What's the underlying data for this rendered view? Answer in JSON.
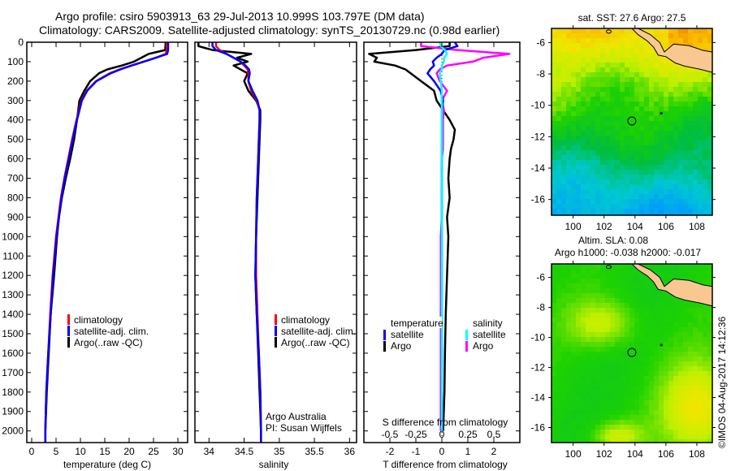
{
  "header": {
    "line1": "Argo profile: csiro 5903913_63 29-Jul-2013 10.999S 103.797E (DM data)",
    "line2": "Climatology: CARS2009. Satellite-adjusted climatology: synTS_20130729.nc (0.98d earlier)"
  },
  "colors": {
    "climatology": "#ff0000",
    "satellite": "#0000ff",
    "argo": "#000000",
    "sal_satellite": "#00ffff",
    "sal_argo": "#ff00ff",
    "land": "#f8c890"
  },
  "chart_data": [
    {
      "type": "line",
      "name": "temperature-profile",
      "xlabel": "temperature (deg C)",
      "ylabel": "",
      "xlim": [
        -1,
        32
      ],
      "ylim": [
        2060,
        0
      ],
      "xticks": [
        "0",
        "5",
        "10",
        "15",
        "20",
        "25",
        "30"
      ],
      "xtick_values": [
        0,
        5,
        10,
        15,
        20,
        25,
        30
      ],
      "yticks": [
        "0",
        "100",
        "200",
        "300",
        "400",
        "500",
        "600",
        "700",
        "800",
        "900",
        "1000",
        "1100",
        "1200",
        "1300",
        "1400",
        "1500",
        "1600",
        "1700",
        "1800",
        "1900",
        "2000"
      ],
      "ytick_values": [
        0,
        100,
        200,
        300,
        400,
        500,
        600,
        700,
        800,
        900,
        1000,
        1100,
        1200,
        1300,
        1400,
        1500,
        1600,
        1700,
        1800,
        1900,
        2000
      ],
      "legend": [
        "climatology",
        "satellite-adj. clim.",
        "Argo(..raw -QC)"
      ],
      "legend_position": "center-left",
      "depth": [
        0,
        40,
        60,
        80,
        100,
        120,
        140,
        160,
        200,
        250,
        300,
        400,
        500,
        600,
        700,
        800,
        900,
        1000,
        1200,
        1400,
        1600,
        1800,
        2000,
        2060
      ],
      "series": [
        {
          "name": "climatology",
          "values": [
            27.7,
            27.7,
            27.5,
            25.5,
            23,
            20.5,
            18,
            16,
            13.2,
            11.3,
            10.2,
            9.2,
            8.3,
            7.5,
            6.7,
            6.0,
            5.5,
            5.0,
            4.3,
            3.8,
            3.4,
            3.0,
            2.8,
            2.8
          ]
        },
        {
          "name": "satellite-adj. clim.",
          "values": [
            28,
            28,
            27.8,
            25.5,
            23,
            20.5,
            18.2,
            16.2,
            13.3,
            11.4,
            10.3,
            9.3,
            8.4,
            7.6,
            6.8,
            6.1,
            5.6,
            5.1,
            4.4,
            3.9,
            3.4,
            3.0,
            2.8,
            2.8
          ]
        },
        {
          "name": "Argo(..raw -QC)",
          "values": [
            27.5,
            27.4,
            24,
            22.5,
            21,
            18.5,
            15.5,
            13.8,
            12.0,
            10.8,
            9.8,
            9.3,
            8.7,
            7.9,
            7.0,
            6.2,
            5.6,
            5.2,
            4.6,
            3.9,
            3.5,
            3.1,
            2.8,
            2.8
          ]
        }
      ]
    },
    {
      "type": "line",
      "name": "salinity-profile",
      "xlabel": "salinity",
      "xlim": [
        33.8,
        36.1
      ],
      "ylim": [
        2060,
        0
      ],
      "xticks": [
        "34",
        "34.5",
        "35",
        "35.5",
        "36"
      ],
      "xtick_values": [
        34,
        34.5,
        35,
        35.5,
        36
      ],
      "legend": [
        "climatology",
        "satellite-adj. clim.",
        "Argo(..raw -QC)"
      ],
      "legend_position": "center-right",
      "annotation": [
        "Argo Australia",
        "PI: Susan Wijffels"
      ],
      "depth": [
        0,
        20,
        40,
        60,
        80,
        100,
        120,
        140,
        160,
        200,
        250,
        300,
        350,
        400,
        500,
        600,
        800,
        1000,
        1200,
        1400,
        1600,
        1800,
        2000,
        2060
      ],
      "series": [
        {
          "name": "climatology",
          "values": [
            34.1,
            34.1,
            34.15,
            34.25,
            34.35,
            34.45,
            34.5,
            34.55,
            34.56,
            34.56,
            34.6,
            34.68,
            34.72,
            34.72,
            34.71,
            34.7,
            34.68,
            34.67,
            34.67,
            34.69,
            34.71,
            34.73,
            34.74,
            34.74
          ]
        },
        {
          "name": "satellite-adj. clim.",
          "values": [
            34.05,
            34.05,
            34.1,
            34.25,
            34.35,
            34.45,
            34.52,
            34.57,
            34.58,
            34.56,
            34.62,
            34.69,
            34.72,
            34.72,
            34.71,
            34.7,
            34.68,
            34.67,
            34.66,
            34.68,
            34.71,
            34.73,
            34.74,
            34.74
          ]
        },
        {
          "name": "Argo(..raw -QC)",
          "values": [
            33.85,
            33.85,
            34.05,
            34.6,
            34.4,
            34.55,
            34.35,
            34.45,
            34.55,
            34.5,
            34.56,
            34.67,
            34.73,
            34.73,
            34.72,
            34.71,
            34.69,
            34.67,
            34.66,
            34.68,
            34.7,
            34.72,
            34.74,
            34.74
          ]
        }
      ]
    },
    {
      "type": "line",
      "name": "difference-profile",
      "xlabel": "T difference from climatology",
      "xlabel_top": "S difference from climatology",
      "xlim": [
        -3,
        3
      ],
      "ylim": [
        2060,
        0
      ],
      "xticks": [
        "-2",
        "-1",
        "0",
        "1",
        "2"
      ],
      "xtick_values": [
        -2,
        -1,
        0,
        1,
        2
      ],
      "s_xticks": [
        "-0.5",
        "-0.25",
        "0",
        "0.25",
        "0.5"
      ],
      "s_xtick_values": [
        -0.5,
        -0.25,
        0,
        0.25,
        0.5
      ],
      "legend_temperature_title": "temperature",
      "legend_salinity_title": "salinity",
      "legend_temperature": [
        "satellite",
        "Argo"
      ],
      "legend_salinity": [
        "satellite",
        "Argo"
      ],
      "legend_position": "center",
      "depth": [
        0,
        20,
        40,
        60,
        80,
        100,
        120,
        140,
        160,
        200,
        250,
        300,
        350,
        400,
        450,
        500,
        550,
        600,
        700,
        800,
        900,
        1000,
        1200,
        1400,
        1600,
        1800,
        2000
      ],
      "series": [
        {
          "name": "T satellite",
          "values": [
            0.5,
            0.6,
            0.1,
            0.0,
            -0.2,
            -0.35,
            -0.3,
            -0.45,
            -0.55,
            -0.3,
            -0.05,
            0.05,
            0.0,
            0.0,
            0.0,
            0.0,
            0.0,
            0.0,
            0.0,
            0.0,
            0.0,
            0.0,
            0.0,
            0.0,
            0.0,
            0.0,
            0.0
          ]
        },
        {
          "name": "T Argo",
          "values": [
            0.3,
            0.3,
            -1.0,
            -2.8,
            -2.5,
            -2.6,
            -1.8,
            -1.4,
            -1.2,
            -0.8,
            -0.3,
            -0.2,
            0.05,
            0.3,
            0.5,
            0.45,
            0.35,
            0.3,
            0.25,
            0.3,
            0.2,
            0.25,
            0.2,
            0.15,
            0.12,
            0.1,
            0.05
          ]
        },
        {
          "name": "S satellite",
          "values": [
            -0.02,
            -0.01,
            0.03,
            0.05,
            0.02,
            0.02,
            0.0,
            0.0,
            -0.02,
            -0.01,
            0.0,
            0.0,
            0.0,
            0.0,
            0.0,
            0.0,
            0.0,
            0.0,
            0.0,
            0.0,
            0.0,
            0.0,
            0.0,
            0.0,
            0.0,
            0.0,
            0.0
          ]
        },
        {
          "name": "S Argo",
          "values": [
            -0.2,
            -0.2,
            0.15,
            0.65,
            0.4,
            0.3,
            0.05,
            -0.02,
            -0.05,
            -0.02,
            0.05,
            0.0,
            0.02,
            0.01,
            0.01,
            0.01,
            0.01,
            0.0,
            0.0,
            0.0,
            0.0,
            -0.01,
            -0.01,
            -0.01,
            -0.01,
            -0.01,
            -0.01
          ]
        }
      ]
    },
    {
      "type": "heatmap",
      "name": "sst-map",
      "title": "sat. SST: 27.6 Argo: 27.5",
      "xticks": [
        "100",
        "102",
        "104",
        "106",
        "108"
      ],
      "xtick_values": [
        100,
        102,
        104,
        106,
        108
      ],
      "yticks": [
        "-6",
        "-8",
        "-10",
        "-12",
        "-14",
        "-16"
      ],
      "ytick_values": [
        -6,
        -8,
        -10,
        -12,
        -14,
        -16
      ],
      "xlim": [
        98.6,
        109
      ],
      "ylim": [
        -17,
        -5.1
      ],
      "profile_location": [
        103.797,
        -10.999
      ]
    },
    {
      "type": "heatmap",
      "name": "sla-map",
      "title_line1": "Altim. SLA: 0.08",
      "title_line2": "Argo h1000: -0.038 h2000: -0.017",
      "xticks": [
        "100",
        "102",
        "104",
        "106",
        "108"
      ],
      "xtick_values": [
        100,
        102,
        104,
        106,
        108
      ],
      "yticks": [
        "-6",
        "-8",
        "-10",
        "-12",
        "-14",
        "-16"
      ],
      "ytick_values": [
        -6,
        -8,
        -10,
        -12,
        -14,
        -16
      ],
      "xlim": [
        98.6,
        109
      ],
      "ylim": [
        -17,
        -5.1
      ],
      "profile_location": [
        103.797,
        -10.999
      ]
    }
  ],
  "footer": {
    "credit": "©IMOS 04-Aug-2017 14:12:36"
  }
}
